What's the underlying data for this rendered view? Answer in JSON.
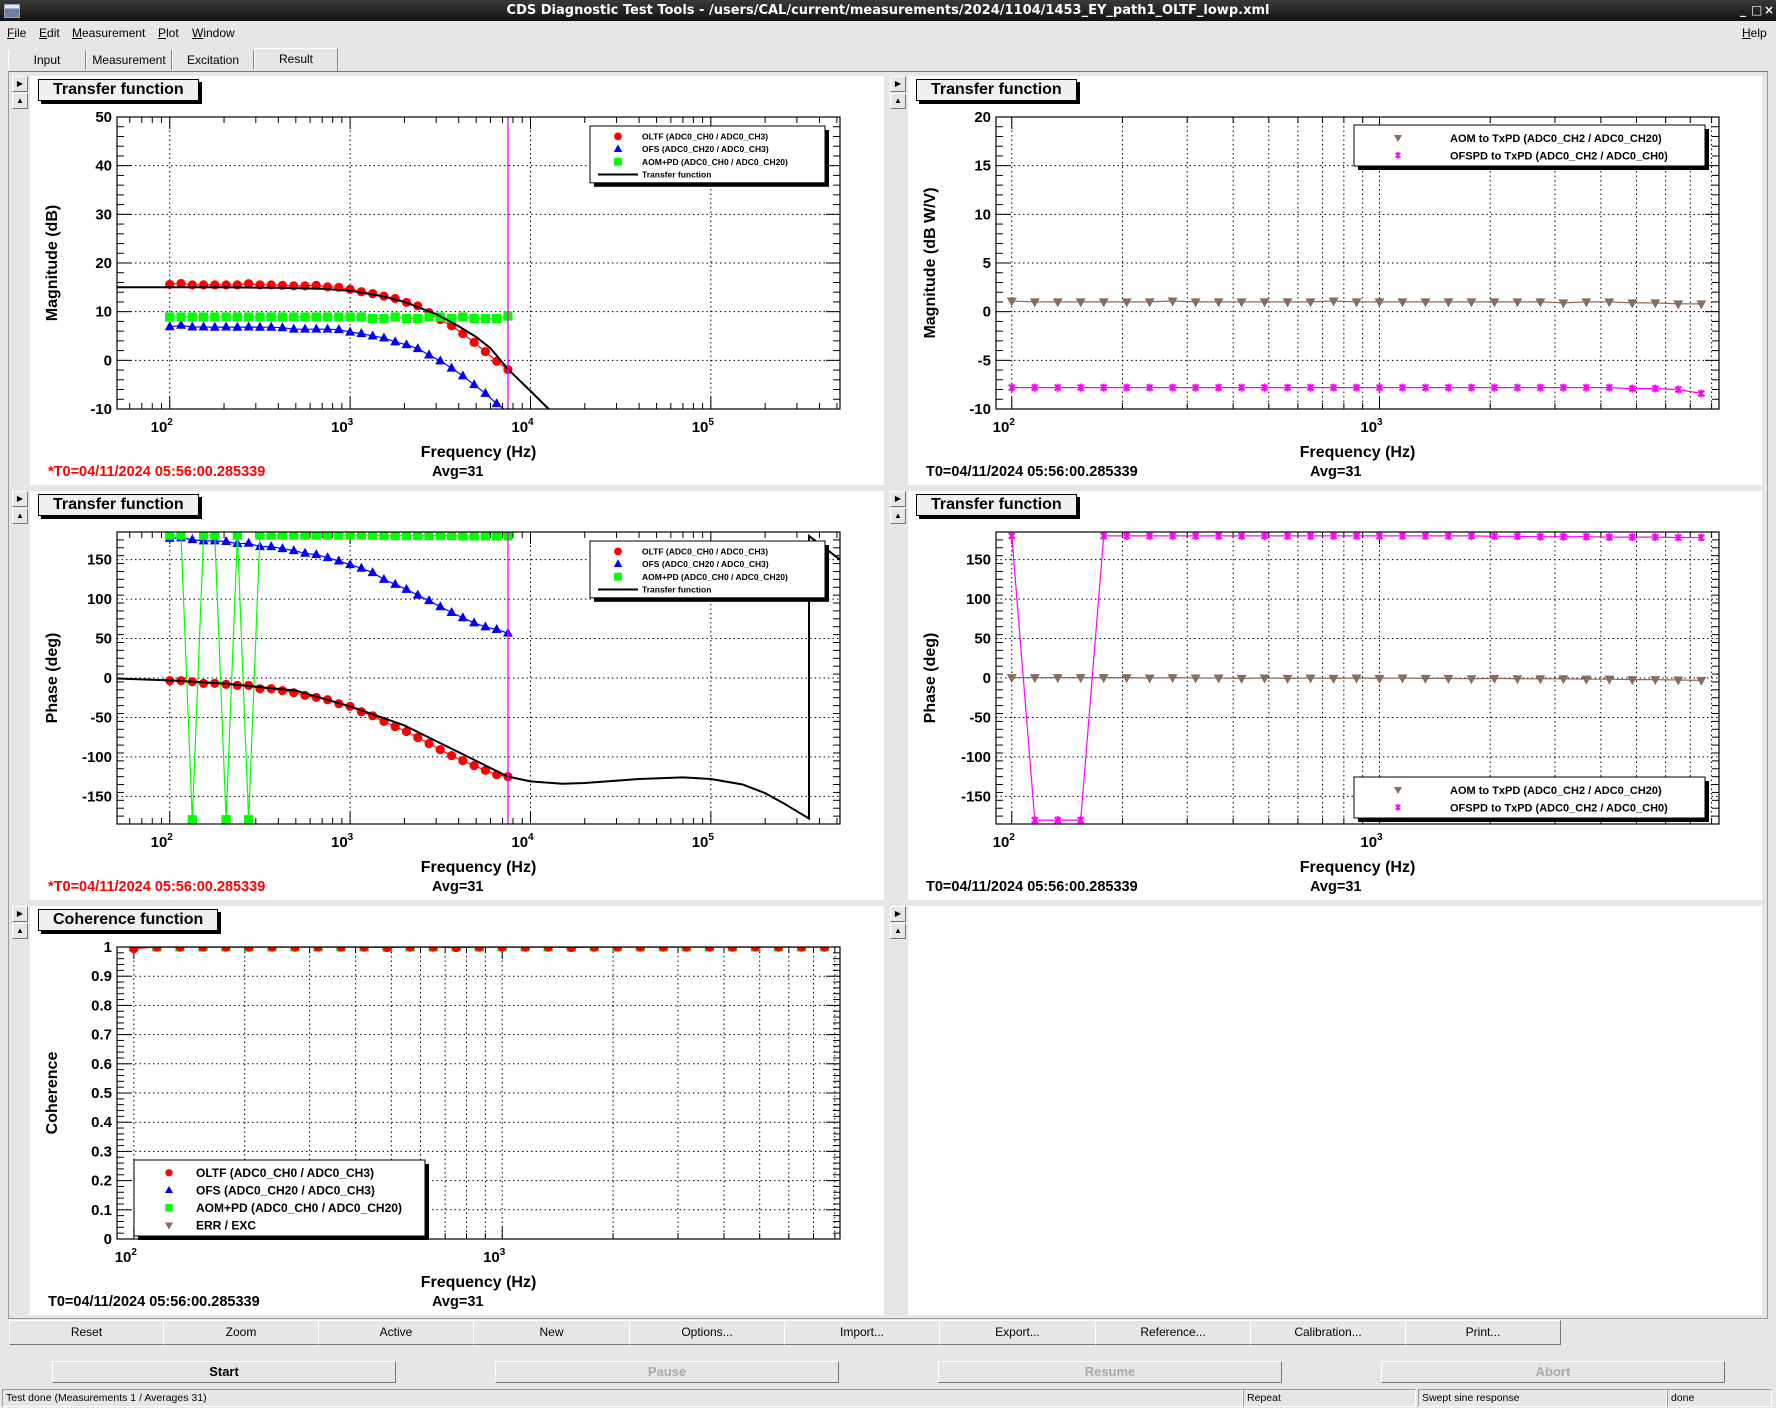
{
  "window": {
    "title": "CDS Diagnostic Test Tools - /users/CAL/current/measurements/2024/1104/1453_EY_path1_OLTF_lowp.xml",
    "controls": [
      "_",
      "□",
      "×"
    ]
  },
  "menu": {
    "items": [
      "File",
      "Edit",
      "Measurement",
      "Plot",
      "Window"
    ],
    "help": "Help"
  },
  "tabs": [
    {
      "label": "Input"
    },
    {
      "label": "Measurement"
    },
    {
      "label": "Excitation"
    },
    {
      "label": "Result",
      "active": true
    }
  ],
  "pad_arrows": {
    "right": "▶",
    "up": "▲"
  },
  "colors": {
    "oltf": "#ff0000",
    "ofs": "#0000ff",
    "aompd": "#00ff00",
    "tf_line": "#000000",
    "aom_txpd": "#8b6b5b",
    "ofspd_txpd": "#ff00ff",
    "cursor": "#ff00ff",
    "t0_modified": "#ff0000"
  },
  "frequency_points_hz": [
    100,
    115.5,
    133.4,
    154.0,
    177.8,
    205.4,
    237.1,
    273.8,
    316.2,
    365.2,
    421.7,
    487.0,
    562.3,
    649.4,
    749.9,
    866.0,
    1000,
    1154.8,
    1333.5,
    1539.9,
    1778.3,
    2053.5,
    2371.4,
    2738.4,
    3162.3,
    3651.7,
    4217.0,
    4869.7,
    5623.4,
    6493.8,
    7498.9
  ],
  "pads": [
    {
      "title": "Transfer function",
      "t0": "*T0=04/11/2024 05:56:00.285339",
      "t0_modified": true,
      "avg": "Avg=31",
      "plot": {
        "xlabel": "Frequency (Hz)",
        "ylabel": "Magnitude (dB)",
        "xscale": "log",
        "xlim": [
          51,
          520000
        ],
        "ylim": [
          -10,
          50
        ],
        "xtick_base": "10",
        "xtick_decades": [
          2,
          3,
          4,
          5
        ],
        "yticks": [
          -10,
          0,
          10,
          20,
          30,
          40,
          50
        ],
        "yminor": 2,
        "minor_grid": false,
        "cursor_x": 7500,
        "legend": {
          "position": "top-right",
          "size": "small"
        },
        "series": [
          {
            "name": "OLTF (ADC0_CH0 / ADC0_CH3)",
            "marker": "circle",
            "color": "#ff0000",
            "y": [
              15.6,
              15.8,
              15.5,
              15.5,
              15.5,
              15.5,
              15.5,
              15.75,
              15.5,
              15.5,
              15.4,
              15.3,
              15.3,
              15.4,
              15.1,
              15.0,
              14.6,
              14.1,
              13.7,
              13.2,
              12.7,
              11.9,
              11.2,
              9.8,
              8.4,
              7.1,
              5.5,
              3.7,
              1.8,
              -0.2,
              -1.9
            ]
          },
          {
            "name": "OFS (ADC0_CH20 / ADC0_CH3)",
            "marker": "triangle-up",
            "color": "#0000ff",
            "y": [
              6.9,
              7.2,
              6.85,
              6.85,
              6.8,
              6.85,
              6.8,
              6.85,
              6.8,
              6.8,
              6.7,
              6.4,
              6.4,
              6.4,
              6.4,
              6.3,
              5.8,
              5.5,
              5.0,
              4.6,
              3.8,
              3.2,
              2.4,
              1.1,
              -0.1,
              -1.6,
              -3.2,
              -5.0,
              -6.8,
              -8.9,
              -10.6
            ]
          },
          {
            "name": "AOM+PD (ADC0_CH0 / ADC0_CH20)",
            "marker": "square",
            "color": "#00ff00",
            "y": [
              8.9,
              8.9,
              8.9,
              8.9,
              8.9,
              8.9,
              8.9,
              8.9,
              8.9,
              8.9,
              8.9,
              8.9,
              8.9,
              8.9,
              8.9,
              8.9,
              8.9,
              8.9,
              8.6,
              8.6,
              8.9,
              8.6,
              8.6,
              8.9,
              8.9,
              8.6,
              8.9,
              8.6,
              8.6,
              8.6,
              9.1
            ]
          },
          {
            "name": "Transfer function",
            "marker": "none",
            "color": "#000000",
            "line_width": 2,
            "x": [
              50,
              100,
              200,
              400,
              700,
              1000,
              1500,
              2000,
              3000,
              4000,
              5000,
              6000,
              7500,
              10000,
              12600
            ],
            "y": [
              15,
              15,
              15,
              14.9,
              14.7,
              14.3,
              13.2,
              12.0,
              9.5,
              7.0,
              4.8,
              2.5,
              -1.8,
              -6.3,
              -10
            ]
          }
        ]
      }
    },
    {
      "title": "Transfer function",
      "t0": "T0=04/11/2024 05:56:00.285339",
      "t0_modified": false,
      "avg": "Avg=31",
      "plot": {
        "xlabel": "Frequency (Hz)",
        "ylabel": "Magnitude (dB W/V)",
        "xscale": "log",
        "xlim": [
          90.6,
          8380
        ],
        "ylim": [
          -10,
          20
        ],
        "xtick_base": "10",
        "xtick_decades": [
          2,
          3
        ],
        "yticks": [
          -10,
          -5,
          0,
          5,
          10,
          15,
          20
        ],
        "yminor": 1,
        "minor_grid": true,
        "legend": {
          "position": "top-right",
          "size": "medium"
        },
        "series": [
          {
            "name": "AOM to TxPD (ADC0_CH2 / ADC0_CH20)",
            "marker": "triangle-down",
            "color": "#8b6b5b",
            "y": [
              1.1,
              1.0,
              1.0,
              1.0,
              1.0,
              1.0,
              1.0,
              1.1,
              1.0,
              1.0,
              1.0,
              1.0,
              1.0,
              1.0,
              1.1,
              1.0,
              1.0,
              1.0,
              1.0,
              1.0,
              1.0,
              1.0,
              1.0,
              1.0,
              0.9,
              1.0,
              1.0,
              0.9,
              0.9,
              0.8,
              0.8
            ]
          },
          {
            "name": "OFSPD to TxPD (ADC0_CH2 / ADC0_CH0)",
            "marker": "star",
            "color": "#ff00ff",
            "y": [
              -7.8,
              -7.8,
              -7.8,
              -7.8,
              -7.8,
              -7.8,
              -7.8,
              -7.8,
              -7.8,
              -7.8,
              -7.8,
              -7.8,
              -7.8,
              -7.8,
              -7.8,
              -7.8,
              -7.8,
              -7.8,
              -7.8,
              -7.8,
              -7.8,
              -7.8,
              -7.8,
              -7.8,
              -7.8,
              -7.8,
              -7.8,
              -7.9,
              -7.9,
              -8.0,
              -8.4
            ]
          }
        ]
      }
    },
    {
      "title": "Transfer function",
      "t0": "*T0=04/11/2024 05:56:00.285339",
      "t0_modified": true,
      "avg": "Avg=31",
      "plot": {
        "xlabel": "Frequency (Hz)",
        "ylabel": "Phase (deg)",
        "xscale": "log",
        "xlim": [
          51,
          520000
        ],
        "ylim": [
          -185,
          185
        ],
        "xtick_base": "10",
        "xtick_decades": [
          2,
          3,
          4,
          5
        ],
        "yticks": [
          -150,
          -100,
          -50,
          0,
          50,
          100,
          150
        ],
        "yminor": 10,
        "minor_grid": false,
        "cursor_x": 7500,
        "legend": {
          "position": "top-right",
          "size": "small"
        },
        "series": [
          {
            "name": "OLTF (ADC0_CH0 / ADC0_CH3)",
            "marker": "circle",
            "color": "#ff0000",
            "y": [
              -3.4,
              -3.4,
              -4.7,
              -6.8,
              -6.8,
              -8,
              -9.3,
              -9.3,
              -13.6,
              -13.6,
              -16,
              -18.6,
              -22,
              -24.6,
              -27.5,
              -32.6,
              -36,
              -42.8,
              -47.9,
              -55,
              -61.4,
              -67.8,
              -75.4,
              -83,
              -90.7,
              -98.3,
              -104.7,
              -111,
              -117,
              -122.5,
              -125
            ]
          },
          {
            "name": "OFS (ADC0_CH20 / ADC0_CH3)",
            "marker": "triangle-up",
            "color": "#0000ff",
            "y": [
              177,
              177.5,
              175.4,
              173.7,
              173.7,
              172.9,
              170.3,
              170.7,
              166.5,
              166.5,
              164,
              161.4,
              158,
              156.4,
              152.5,
              148.3,
              143.6,
              139,
              133.5,
              125,
              118.6,
              112.3,
              105,
              98,
              90.3,
              83,
              76.3,
              69.9,
              64.8,
              61.4,
              56.8
            ]
          },
          {
            "name": "AOM+PD (ADC0_CH0 / ADC0_CH20)",
            "marker": "square",
            "color": "#00ff00",
            "y": [
              181,
              181,
              -179.5,
              181,
              181,
              -179.5,
              181,
              -179.5,
              181,
              181,
              181,
              181,
              181,
              181,
              181,
              181,
              181,
              181,
              181,
              180.5,
              180.5,
              180.5,
              180.5,
              180.5,
              180.5,
              180.5,
              180,
              180,
              180,
              180,
              180
            ]
          },
          {
            "name": "Transfer function",
            "marker": "none",
            "color": "#000000",
            "line_width": 2,
            "x": [
              50,
              100,
              200,
              500,
              1000,
              2000,
              3000,
              5000,
              7500,
              10000,
              15000,
              20000,
              40000,
              70000,
              100000,
              150000,
              200000,
              250000,
              350000,
              350000,
              520000
            ],
            "y": [
              -0.5,
              -3,
              -7,
              -16,
              -36,
              -60,
              -80,
              -105,
              -125,
              -131,
              -134,
              -133,
              -128,
              -126,
              -128,
              -135,
              -146,
              -158,
              -178,
              180,
              150
            ]
          }
        ]
      }
    },
    {
      "title": "Transfer function",
      "t0": "T0=04/11/2024 05:56:00.285339",
      "t0_modified": false,
      "avg": "Avg=31",
      "plot": {
        "xlabel": "Frequency (Hz)",
        "ylabel": "Phase (deg)",
        "xscale": "log",
        "xlim": [
          90.6,
          8380
        ],
        "ylim": [
          -185,
          185
        ],
        "xtick_base": "10",
        "xtick_decades": [
          2,
          3
        ],
        "yticks": [
          -150,
          -100,
          -50,
          0,
          50,
          100,
          150
        ],
        "yminor": 10,
        "minor_grid": true,
        "legend": {
          "position": "bottom-right",
          "size": "medium"
        },
        "series": [
          {
            "name": "AOM to TxPD (ADC0_CH2 / ADC0_CH20)",
            "marker": "triangle-down",
            "color": "#8b6b5b",
            "y": [
              0.5,
              0.5,
              0.5,
              0.5,
              0.5,
              0.5,
              0,
              0.5,
              0,
              0,
              -0.5,
              0,
              -0.5,
              0,
              -0.5,
              0,
              -0.5,
              0,
              -0.5,
              -0.5,
              -1,
              -0.5,
              -1,
              -1,
              -1,
              -1.5,
              -1.5,
              -2,
              -2,
              -2.5,
              -3
            ]
          },
          {
            "name": "OFSPD to TxPD (ADC0_CH2 / ADC0_CH0)",
            "marker": "star",
            "color": "#ff00ff",
            "y": [
              180,
              -180,
              -180,
              -180,
              180,
              180,
              180,
              180,
              180,
              180,
              180,
              180,
              180,
              180,
              180,
              180,
              180,
              180,
              180,
              180,
              180,
              179.5,
              179.5,
              179,
              179,
              179,
              178.5,
              178.5,
              178.5,
              178,
              178
            ]
          }
        ]
      }
    },
    {
      "title": "Coherence function",
      "t0": "T0=04/11/2024 05:56:00.285339",
      "t0_modified": false,
      "avg": "Avg=31",
      "plot": {
        "xlabel": "Frequency (Hz)",
        "ylabel": "Coherence",
        "xscale": "log",
        "xlim": [
          90,
          8260
        ],
        "ylim": [
          0,
          1
        ],
        "xtick_base": "10",
        "xtick_decades": [
          2,
          3
        ],
        "yticks": [
          0,
          0.1,
          0.2,
          0.3,
          0.4,
          0.5,
          0.6,
          0.7,
          0.8,
          0.9,
          1
        ],
        "yminor": 0.02,
        "minor_grid": true,
        "legend": {
          "position": "bottom-left",
          "size": "large"
        },
        "series": [
          {
            "name": "OLTF (ADC0_CH0 / ADC0_CH3)",
            "marker": "circle",
            "color": "#ff0000",
            "draw_last": true,
            "y": [
              0.995,
              1,
              1,
              1,
              1,
              1,
              1,
              1,
              1,
              1,
              1,
              0.998,
              1,
              1,
              0.998,
              1,
              1,
              1,
              1,
              0.998,
              1,
              1,
              1,
              1,
              1,
              1,
              1,
              1,
              1,
              1,
              1
            ]
          },
          {
            "name": "OFS (ADC0_CH20 / ADC0_CH3)",
            "marker": "triangle-up",
            "color": "#0000ff",
            "y": [
              1,
              1,
              1,
              1,
              1,
              1,
              1,
              1,
              1,
              1,
              1,
              1,
              1,
              1,
              1,
              1,
              1,
              1,
              1,
              1,
              1,
              1,
              1,
              1,
              1,
              1,
              1,
              1,
              1,
              1,
              1
            ]
          },
          {
            "name": "AOM+PD (ADC0_CH0 / ADC0_CH20)",
            "marker": "square",
            "color": "#00ff00",
            "y": [
              1,
              1,
              1,
              1,
              1,
              1,
              1,
              1,
              1,
              1,
              1,
              1,
              1,
              1,
              1,
              1,
              1,
              1,
              1,
              1,
              1,
              1,
              1,
              1,
              1,
              1,
              1,
              1,
              1,
              1,
              1
            ]
          },
          {
            "name": "ERR / EXC",
            "marker": "triangle-down",
            "color": "#8b6b5b",
            "y": []
          }
        ]
      }
    },
    {
      "title": null,
      "plot": null
    }
  ],
  "toolbar": [
    "Reset",
    "Zoom",
    "Active",
    "New",
    "Options...",
    "Import...",
    "Export...",
    "Reference...",
    "Calibration...",
    "Print..."
  ],
  "controls": [
    {
      "label": "Start",
      "enabled": true
    },
    {
      "label": "Pause",
      "enabled": false
    },
    {
      "label": "Resume",
      "enabled": false
    },
    {
      "label": "Abort",
      "enabled": false
    }
  ],
  "status": {
    "message": "Test done (Measurements 1 / Averages 31)",
    "mode": "Repeat",
    "type": "Swept sine response",
    "state": "done"
  }
}
